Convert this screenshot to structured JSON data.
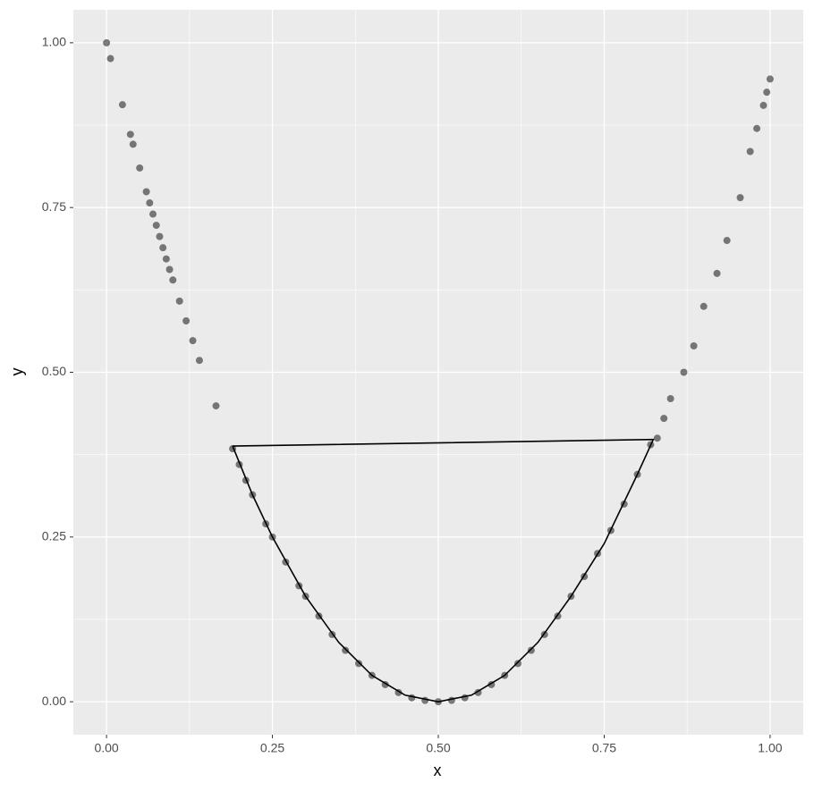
{
  "chart_data": {
    "type": "scatter_path",
    "x_label": "x",
    "y_label": "y",
    "xlim": [
      -0.05,
      1.05
    ],
    "ylim": [
      -0.05,
      1.05
    ],
    "xticks": [
      {
        "value": 0,
        "label": "0.00"
      },
      {
        "value": 0.25,
        "label": "0.25"
      },
      {
        "value": 0.5,
        "label": "0.50"
      },
      {
        "value": 0.75,
        "label": "0.75"
      },
      {
        "value": 1,
        "label": "1.00"
      }
    ],
    "yticks": [
      {
        "value": 0,
        "label": "0.00"
      },
      {
        "value": 0.25,
        "label": "0.25"
      },
      {
        "value": 0.5,
        "label": "0.50"
      },
      {
        "value": 0.75,
        "label": "0.75"
      },
      {
        "value": 1,
        "label": "1.00"
      }
    ],
    "x_minor_grid": [
      0.125,
      0.375,
      0.625,
      0.875
    ],
    "y_minor_grid": [
      0.125,
      0.375,
      0.625,
      0.875
    ],
    "grid": true,
    "points": {
      "color": "#000000",
      "opacity": 0.5,
      "x": [
        0,
        0.006,
        0.024,
        0.036,
        0.04,
        0.05,
        0.06,
        0.065,
        0.07,
        0.075,
        0.08,
        0.085,
        0.09,
        0.095,
        0.1,
        0.11,
        0.12,
        0.13,
        0.14,
        0.165,
        0.19,
        0.2,
        0.21,
        0.22,
        0.24,
        0.25,
        0.27,
        0.29,
        0.3,
        0.32,
        0.34,
        0.36,
        0.38,
        0.4,
        0.42,
        0.44,
        0.46,
        0.48,
        0.5,
        0.52,
        0.54,
        0.56,
        0.58,
        0.6,
        0.62,
        0.64,
        0.66,
        0.68,
        0.7,
        0.72,
        0.74,
        0.76,
        0.78,
        0.8,
        0.82,
        0.83,
        0.84,
        0.85,
        0.87,
        0.885,
        0.9,
        0.92,
        0.935,
        0.955,
        0.97,
        0.98,
        0.99,
        0.995,
        1.0
      ],
      "y": [
        1.0,
        0.976,
        0.906,
        0.861,
        0.846,
        0.81,
        0.774,
        0.757,
        0.74,
        0.723,
        0.706,
        0.689,
        0.672,
        0.656,
        0.64,
        0.608,
        0.578,
        0.548,
        0.518,
        0.449,
        0.384,
        0.36,
        0.336,
        0.314,
        0.27,
        0.25,
        0.212,
        0.176,
        0.16,
        0.13,
        0.102,
        0.078,
        0.058,
        0.04,
        0.026,
        0.014,
        0.006,
        0.002,
        0,
        0.002,
        0.006,
        0.014,
        0.026,
        0.04,
        0.058,
        0.078,
        0.102,
        0.13,
        0.16,
        0.19,
        0.225,
        0.26,
        0.3,
        0.345,
        0.39,
        0.4,
        0.43,
        0.46,
        0.5,
        0.54,
        0.6,
        0.65,
        0.7,
        0.765,
        0.835,
        0.87,
        0.905,
        0.925,
        0.945
      ]
    },
    "path": {
      "color": "#000000",
      "x": [
        0.19,
        0.22,
        0.25,
        0.3,
        0.35,
        0.4,
        0.45,
        0.5,
        0.55,
        0.6,
        0.65,
        0.7,
        0.75,
        0.8,
        0.824,
        0.19
      ],
      "y": [
        0.388,
        0.314,
        0.25,
        0.16,
        0.09,
        0.04,
        0.01,
        0,
        0.01,
        0.04,
        0.09,
        0.16,
        0.24,
        0.345,
        0.398,
        0.388
      ]
    }
  }
}
